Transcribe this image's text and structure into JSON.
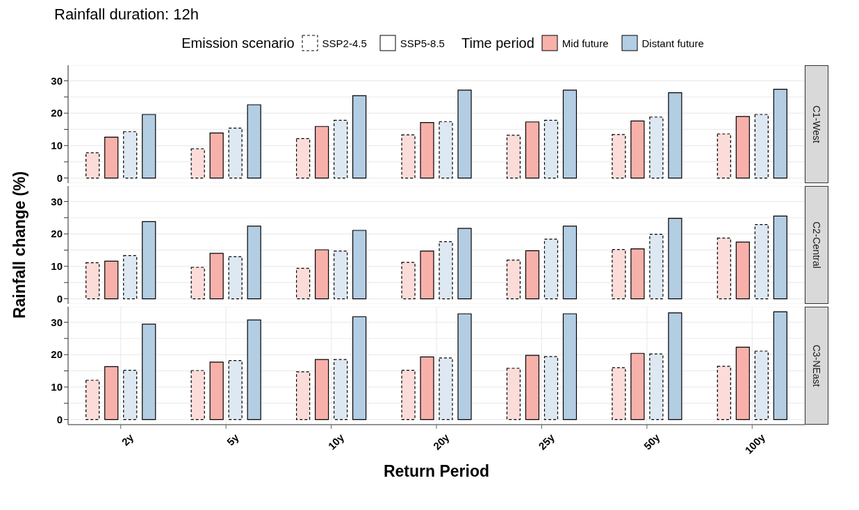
{
  "chart_data": [
    {
      "type": "bar",
      "title": "Rainfall duration: 12h",
      "y2label": "C1-West",
      "annotations": [
        "Emission scenario",
        "SSP2-4.5",
        "SSP5-8.5",
        "Time period",
        "Mid future",
        "Distant future"
      ],
      "categories": [
        null,
        null,
        null,
        null,
        null,
        null,
        null
      ],
      "series": [
        {
          "color": "#fcdcd8",
          "line_style": "dashed",
          "values": [
            7.8,
            9.0,
            12.2,
            13.3,
            13.2,
            13.4,
            13.6
          ]
        },
        {
          "color": "#f8b1aa",
          "line_style": "solid",
          "values": [
            12.6,
            13.9,
            15.9,
            17.1,
            17.3,
            17.6,
            19.0
          ]
        },
        {
          "color": "#dde8f2",
          "line_style": "dashed",
          "values": [
            14.3,
            15.4,
            17.8,
            17.4,
            17.8,
            18.8,
            19.6
          ]
        },
        {
          "color": "#b3cde3",
          "line_style": "solid",
          "values": [
            19.6,
            22.6,
            25.4,
            27.1,
            27.1,
            26.3,
            27.4
          ]
        }
      ],
      "ylim": [
        -1.6,
        34.8
      ],
      "yticks": [
        0,
        {
          "value": 5,
          "label": null
        },
        10,
        {
          "value": 15,
          "label": null
        },
        20,
        {
          "value": 25,
          "label": null
        },
        30
      ],
      "grid": true,
      "tick_labels": "y"
    },
    {
      "type": "bar",
      "y2label": "C2-Central",
      "ylabel": "Rainfall change (%)",
      "categories": [
        null,
        null,
        null,
        null,
        null,
        null,
        null
      ],
      "series": [
        {
          "color": "#fcdcd8",
          "line_style": "dashed",
          "values": [
            11.1,
            9.7,
            9.4,
            11.2,
            11.9,
            15.2,
            18.7
          ]
        },
        {
          "color": "#f8b1aa",
          "line_style": "solid",
          "values": [
            11.6,
            14.0,
            15.1,
            14.7,
            14.8,
            15.4,
            17.5
          ]
        },
        {
          "color": "#dde8f2",
          "line_style": "dashed",
          "values": [
            13.3,
            13.0,
            14.7,
            17.6,
            18.4,
            19.9,
            22.9
          ]
        },
        {
          "color": "#b3cde3",
          "line_style": "solid",
          "values": [
            23.8,
            22.4,
            21.1,
            21.7,
            22.4,
            24.8,
            25.5
          ]
        }
      ],
      "ylim": [
        -1.6,
        34.8
      ],
      "yticks": [
        0,
        {
          "value": 5,
          "label": null
        },
        10,
        {
          "value": 15,
          "label": null
        },
        20,
        {
          "value": 25,
          "label": null
        },
        30
      ],
      "grid": true,
      "tick_labels": "y"
    },
    {
      "type": "bar",
      "y2label": "C3-NEast",
      "xlabel": "Return Period",
      "categories": [
        "2y",
        "5y",
        "10y",
        "20y",
        "25y",
        "50y",
        "100y"
      ],
      "series": [
        {
          "color": "#fcdcd8",
          "line_style": "dashed",
          "values": [
            12.1,
            15.1,
            14.7,
            15.2,
            15.8,
            16.0,
            16.4
          ]
        },
        {
          "color": "#f8b1aa",
          "line_style": "solid",
          "values": [
            16.3,
            17.7,
            18.5,
            19.3,
            19.8,
            20.4,
            22.3
          ]
        },
        {
          "color": "#dde8f2",
          "line_style": "dashed",
          "values": [
            15.2,
            18.2,
            18.5,
            19.0,
            19.4,
            20.2,
            21.1
          ]
        },
        {
          "color": "#b3cde3",
          "line_style": "solid",
          "values": [
            29.4,
            30.7,
            31.7,
            32.6,
            32.6,
            32.9,
            33.2
          ]
        }
      ],
      "ylim": [
        -1.6,
        34.8
      ],
      "yticks": [
        0,
        {
          "value": 5,
          "label": null
        },
        10,
        {
          "value": 15,
          "label": null
        },
        20,
        {
          "value": 25,
          "label": null
        },
        30
      ],
      "grid": true
    }
  ]
}
